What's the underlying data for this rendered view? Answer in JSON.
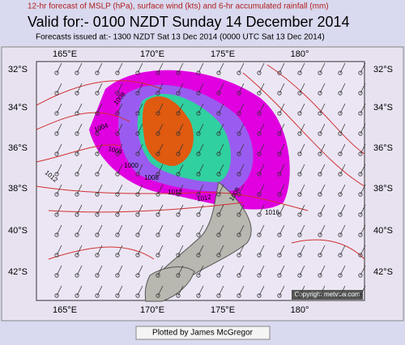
{
  "header": {
    "subtitle": "12-hr forecast of MSLP (hPa), surface wind (kts) and 6-hr accumulated rainfall (mm)",
    "title": "Valid for:- 0100 NZDT Sunday 14 December 2014",
    "issued": "Forecasts issued at:- 1300 NZDT Sat 13 Dec 2014 (0000 UTC Sat 13 Dec 2014)"
  },
  "map": {
    "lon_labels": [
      "165°E",
      "170°E",
      "175°E",
      "180°"
    ],
    "lat_labels": [
      "32°S",
      "34°S",
      "36°S",
      "38°S",
      "40°S",
      "42°S"
    ],
    "isobar_labels": [
      "1008",
      "1004",
      "1004",
      "1000",
      "1008",
      "1012",
      "1012",
      "1008",
      "1016",
      "1012"
    ],
    "copyright": "Copyright metvuw.com"
  },
  "footer": {
    "credit": "Plotted by James McGregor"
  }
}
